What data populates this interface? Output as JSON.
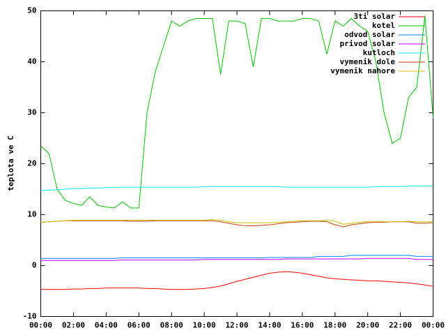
{
  "chart_data": {
    "type": "line",
    "ylabel": "teplota ve C",
    "x": [
      0,
      0.5,
      1,
      1.5,
      2,
      2.5,
      3,
      3.5,
      4,
      4.5,
      5,
      5.5,
      6,
      6.5,
      7,
      7.5,
      8,
      8.5,
      9,
      9.5,
      10,
      10.5,
      11,
      11.5,
      12,
      12.5,
      13,
      13.5,
      14,
      14.5,
      15,
      15.5,
      16,
      16.5,
      17,
      17.5,
      18,
      18.5,
      19,
      19.5,
      20,
      20.5,
      21,
      21.5,
      22,
      22.5,
      23,
      23.5,
      24
    ],
    "xlim": [
      0,
      24
    ],
    "xticks": [
      {
        "value": 0,
        "label": "00:00"
      },
      {
        "value": 2,
        "label": "02:00"
      },
      {
        "value": 4,
        "label": "04:00"
      },
      {
        "value": 6,
        "label": "06:00"
      },
      {
        "value": 8,
        "label": "08:00"
      },
      {
        "value": 10,
        "label": "10:00"
      },
      {
        "value": 12,
        "label": "12:00"
      },
      {
        "value": 14,
        "label": "14:00"
      },
      {
        "value": 16,
        "label": "16:00"
      },
      {
        "value": 18,
        "label": "18:00"
      },
      {
        "value": 20,
        "label": "20:00"
      },
      {
        "value": 22,
        "label": "22:00"
      },
      {
        "value": 24,
        "label": "00:00"
      }
    ],
    "ylim": [
      -10,
      50
    ],
    "yticks": [
      -10,
      0,
      10,
      20,
      30,
      40,
      50
    ],
    "grid": false,
    "legend": "top-right",
    "series": [
      {
        "name": "3ti solar",
        "color": "#ff0000",
        "values": [
          -4.7,
          -4.7,
          -4.7,
          -4.7,
          -4.6,
          -4.6,
          -4.5,
          -4.5,
          -4.4,
          -4.4,
          -4.4,
          -4.4,
          -4.4,
          -4.5,
          -4.5,
          -4.6,
          -4.7,
          -4.7,
          -4.7,
          -4.6,
          -4.5,
          -4.3,
          -4.0,
          -3.6,
          -3.1,
          -2.7,
          -2.3,
          -1.9,
          -1.5,
          -1.3,
          -1.2,
          -1.3,
          -1.5,
          -1.8,
          -2.1,
          -2.4,
          -2.6,
          -2.7,
          -2.8,
          -2.9,
          -3.0,
          -3.0,
          -3.1,
          -3.2,
          -3.3,
          -3.4,
          -3.6,
          -3.8,
          -4.1
        ]
      },
      {
        "name": "kotel",
        "color": "#00c000",
        "values": [
          23.5,
          22,
          15,
          12.8,
          12.2,
          11.8,
          13.5,
          11.8,
          11.5,
          11.3,
          12.5,
          11.3,
          11.3,
          30,
          38,
          43,
          48,
          47,
          48,
          48.5,
          48.5,
          48.5,
          37.5,
          48,
          48,
          47.5,
          39,
          48.5,
          48.5,
          48,
          48,
          48,
          48.5,
          48.5,
          48,
          41.5,
          48,
          47,
          48.5,
          47,
          46,
          40,
          30,
          24,
          25,
          33,
          35,
          49,
          29
        ]
      },
      {
        "name": "odvod solar",
        "color": "#0080ff",
        "values": [
          1.4,
          1.4,
          1.4,
          1.4,
          1.4,
          1.4,
          1.4,
          1.4,
          1.4,
          1.4,
          1.5,
          1.5,
          1.5,
          1.5,
          1.5,
          1.5,
          1.5,
          1.5,
          1.5,
          1.5,
          1.5,
          1.5,
          1.5,
          1.5,
          1.5,
          1.5,
          1.5,
          1.5,
          1.6,
          1.6,
          1.6,
          1.6,
          1.6,
          1.6,
          1.8,
          1.8,
          1.8,
          1.8,
          2.0,
          2.0,
          2.0,
          2.0,
          2.0,
          2.0,
          2.0,
          2.0,
          1.8,
          1.8,
          1.8
        ]
      },
      {
        "name": "privod solar",
        "color": "#c000ff",
        "values": [
          1.0,
          1.0,
          1.0,
          1.0,
          1.0,
          1.0,
          1.0,
          1.0,
          1.0,
          1.0,
          1.1,
          1.1,
          1.1,
          1.1,
          1.1,
          1.1,
          1.1,
          1.1,
          1.1,
          1.1,
          1.2,
          1.2,
          1.2,
          1.2,
          1.2,
          1.2,
          1.2,
          1.2,
          1.2,
          1.2,
          1.3,
          1.3,
          1.3,
          1.3,
          1.3,
          1.3,
          1.3,
          1.3,
          1.3,
          1.3,
          1.4,
          1.4,
          1.4,
          1.4,
          1.4,
          1.4,
          1.2,
          1.2,
          1.2
        ]
      },
      {
        "name": "kutloch",
        "color": "#00eeee",
        "values": [
          14.8,
          14.8,
          14.9,
          15.0,
          15.1,
          15.1,
          15.2,
          15.2,
          15.3,
          15.3,
          15.4,
          15.4,
          15.4,
          15.4,
          15.4,
          15.4,
          15.4,
          15.4,
          15.4,
          15.4,
          15.5,
          15.5,
          15.5,
          15.5,
          15.5,
          15.5,
          15.5,
          15.5,
          15.5,
          15.5,
          15.4,
          15.4,
          15.4,
          15.4,
          15.4,
          15.4,
          15.4,
          15.4,
          15.4,
          15.4,
          15.4,
          15.5,
          15.5,
          15.5,
          15.5,
          15.6,
          15.6,
          15.6,
          15.6
        ]
      },
      {
        "name": "vymenik dole",
        "color": "#c04000",
        "values": [
          8.5,
          8.6,
          8.7,
          8.8,
          8.8,
          8.8,
          8.8,
          8.8,
          8.8,
          8.8,
          8.8,
          8.7,
          8.7,
          8.7,
          8.8,
          8.8,
          8.8,
          8.8,
          8.8,
          8.8,
          8.8,
          8.8,
          8.6,
          8.3,
          8.0,
          7.8,
          7.8,
          7.9,
          8.0,
          8.2,
          8.4,
          8.5,
          8.6,
          8.7,
          8.7,
          8.6,
          8.0,
          7.6,
          8.0,
          8.2,
          8.4,
          8.5,
          8.5,
          8.6,
          8.6,
          8.6,
          8.3,
          8.3,
          8.4
        ]
      },
      {
        "name": "vymenik nahore",
        "color": "#c8c000",
        "values": [
          8.5,
          8.6,
          8.7,
          8.8,
          8.9,
          8.9,
          8.9,
          8.9,
          8.9,
          8.9,
          8.9,
          8.9,
          8.9,
          8.9,
          8.9,
          8.9,
          8.9,
          8.9,
          8.9,
          8.9,
          8.9,
          9.0,
          8.9,
          8.6,
          8.4,
          8.4,
          8.4,
          8.4,
          8.4,
          8.5,
          8.6,
          8.7,
          8.8,
          8.8,
          8.8,
          8.9,
          8.7,
          8.1,
          8.3,
          8.5,
          8.6,
          8.6,
          8.6,
          8.6,
          8.6,
          8.7,
          8.6,
          8.6,
          8.6
        ]
      }
    ]
  }
}
